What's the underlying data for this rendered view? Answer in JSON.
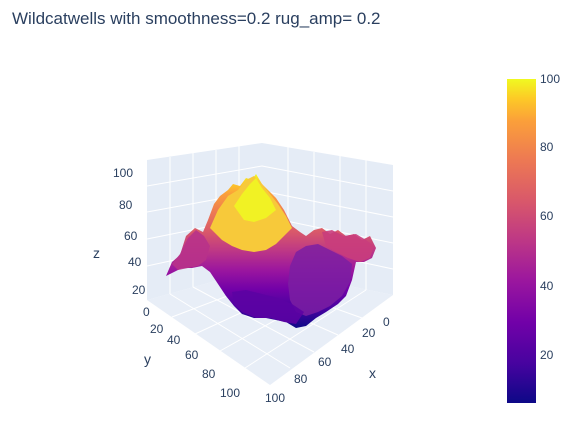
{
  "chart_data": {
    "type": "surface",
    "title": "Wildcatwells with   smoothness=0.2  rug_amp= 0.2",
    "x_label": "x",
    "y_label": "y",
    "z_label": "z",
    "x_ticks": [
      "0",
      "20",
      "40",
      "60",
      "80",
      "100"
    ],
    "y_ticks": [
      "0",
      "20",
      "40",
      "60",
      "80",
      "100"
    ],
    "z_ticks": [
      "20",
      "40",
      "60",
      "80",
      "100"
    ],
    "x_range": [
      0,
      100
    ],
    "y_range": [
      0,
      100
    ],
    "z_range": [
      0,
      100
    ],
    "colorscale": "Plasma",
    "colorbar": {
      "range": [
        5,
        100
      ],
      "ticks": [
        "20",
        "40",
        "60",
        "80",
        "100"
      ]
    },
    "surface_description_values": {
      "peak_value": 97,
      "min_value": 5,
      "edge_ridge_values": [
        55,
        60,
        50,
        58
      ]
    },
    "grid": true
  }
}
